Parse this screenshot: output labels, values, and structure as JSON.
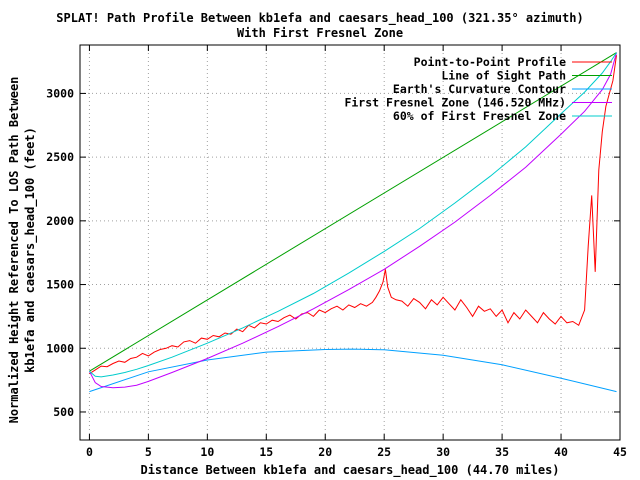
{
  "chart_data": {
    "type": "line",
    "title": "SPLAT! Path Profile Between kb1efa and caesars_head_100 (321.35° azimuth)",
    "subtitle": "With First Fresnel Zone",
    "xlabel": "Distance Between kb1efa and caesars_head_100 (44.70 miles)",
    "ylabel": [
      "Normalized Height Referenced To LOS Path Between",
      "kb1efa and caesars_head_100 (feet)"
    ],
    "xlim": [
      -0.8,
      45
    ],
    "ylim": [
      280,
      3380
    ],
    "x_ticks": [
      0,
      5,
      10,
      15,
      20,
      25,
      30,
      35,
      40,
      45
    ],
    "y_ticks": [
      500,
      1000,
      1500,
      2000,
      2500,
      3000
    ],
    "grid": true,
    "legend_position": "top-right",
    "path_length": 44.7,
    "series": [
      {
        "name": "Point-to-Point Profile",
        "color": "#ff0000",
        "x": [
          0,
          0.5,
          1,
          1.5,
          2,
          2.5,
          3,
          3.5,
          4,
          4.5,
          5,
          5.5,
          6,
          6.5,
          7,
          7.5,
          8,
          8.5,
          9,
          9.5,
          10,
          10.5,
          11,
          11.5,
          12,
          12.5,
          13,
          13.5,
          14,
          14.5,
          15,
          15.5,
          16,
          16.5,
          17,
          17.5,
          18,
          18.5,
          19,
          19.5,
          20,
          20.5,
          21,
          21.5,
          22,
          22.5,
          23,
          23.5,
          24,
          24.3,
          24.6,
          24.9,
          25.1,
          25.3,
          25.6,
          26,
          26.5,
          27,
          27.5,
          28,
          28.5,
          29,
          29.5,
          30,
          30.5,
          31,
          31.5,
          32,
          32.5,
          33,
          33.5,
          34,
          34.5,
          35,
          35.5,
          36,
          36.5,
          37,
          37.5,
          38,
          38.5,
          39,
          39.5,
          40,
          40.5,
          41,
          41.5,
          42,
          42.3,
          42.6,
          42.9,
          43.2,
          43.5,
          43.8,
          44.1,
          44.4,
          44.7
        ],
        "y": [
          800,
          830,
          860,
          855,
          880,
          900,
          890,
          920,
          930,
          960,
          940,
          970,
          990,
          1000,
          1020,
          1010,
          1050,
          1060,
          1040,
          1080,
          1070,
          1100,
          1090,
          1120,
          1110,
          1150,
          1130,
          1180,
          1160,
          1200,
          1190,
          1220,
          1210,
          1240,
          1260,
          1230,
          1270,
          1280,
          1250,
          1300,
          1280,
          1310,
          1330,
          1300,
          1340,
          1320,
          1350,
          1330,
          1360,
          1400,
          1450,
          1520,
          1620,
          1480,
          1400,
          1380,
          1370,
          1330,
          1390,
          1360,
          1310,
          1380,
          1340,
          1400,
          1350,
          1300,
          1380,
          1320,
          1250,
          1330,
          1290,
          1310,
          1250,
          1300,
          1200,
          1280,
          1230,
          1300,
          1250,
          1200,
          1280,
          1230,
          1190,
          1250,
          1200,
          1210,
          1180,
          1300,
          1800,
          2200,
          1600,
          2400,
          2700,
          2900,
          3000,
          3100,
          3300
        ]
      },
      {
        "name": "Line of Sight Path",
        "color": "#00a000",
        "x": [
          0,
          44.7
        ],
        "y": [
          820,
          3320
        ]
      },
      {
        "name": "Earth's Curvature Contour",
        "color": "#00a0ff",
        "x": [
          0,
          5,
          10,
          15,
          20,
          22.35,
          25,
          30,
          35,
          40,
          44.7
        ],
        "y": [
          660,
          815,
          908,
          970,
          990,
          993,
          988,
          945,
          870,
          765,
          660
        ]
      },
      {
        "name": "First Fresnel Zone (146.520 MHz)",
        "color": "#c000ff",
        "x": [
          0,
          0.5,
          1,
          2,
          3,
          4,
          5,
          7,
          10,
          13,
          16,
          19,
          22,
          25,
          28,
          31,
          34,
          37,
          40,
          42,
          43.5,
          44.2,
          44.7
        ],
        "y": [
          820,
          730,
          700,
          690,
          695,
          710,
          740,
          810,
          920,
          1040,
          1170,
          1310,
          1460,
          1620,
          1800,
          1990,
          2200,
          2420,
          2680,
          2860,
          3030,
          3150,
          3320
        ]
      },
      {
        "name": "60% of First Fresnel Zone",
        "color": "#00cccc",
        "x": [
          0,
          0.5,
          1,
          2,
          3,
          4,
          5,
          7,
          10,
          13,
          16,
          19,
          22,
          25,
          28,
          31,
          34,
          37,
          40,
          42,
          43.5,
          44.2,
          44.7
        ],
        "y": [
          820,
          780,
          775,
          790,
          810,
          835,
          865,
          930,
          1040,
          1160,
          1290,
          1430,
          1590,
          1760,
          1940,
          2140,
          2350,
          2580,
          2840,
          3010,
          3160,
          3250,
          3320
        ]
      }
    ]
  }
}
